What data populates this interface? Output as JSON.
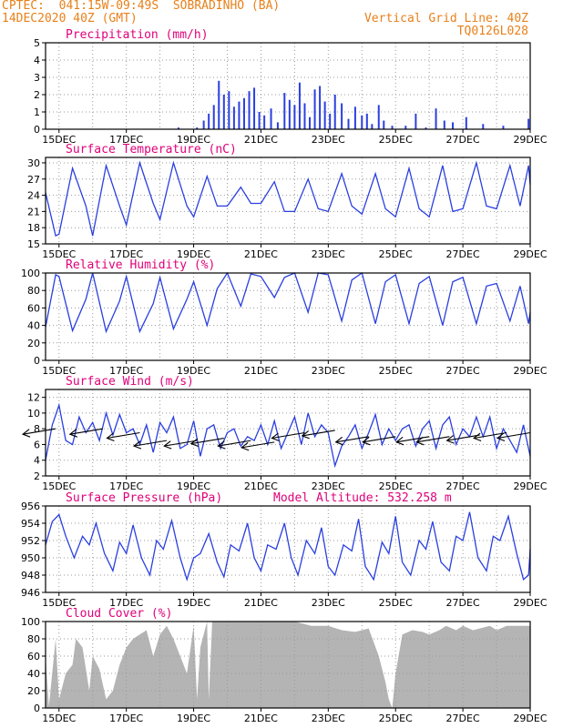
{
  "header": {
    "line1": "CPTEC:  041:15W-09:49S  SOBRADINHO (BA)",
    "line2": "14DEC2020 40Z (GMT)",
    "grid_note": "Vertical Grid Line: 40Z",
    "model_code": "TQ0126L028"
  },
  "colors": {
    "header": "#e8801a",
    "panel_title": "#e0007a",
    "series_line": "#2a3fe0",
    "precip_bar": "#2a3fe0",
    "cloud_fill": "#b4b4b4",
    "grid": "#9a9a9a"
  },
  "chart_data": [
    {
      "type": "bar",
      "title": "Precipitation (mm/h)",
      "x_ticks": [
        "15DEC",
        "17DEC",
        "19DEC",
        "21DEC",
        "23DEC",
        "25DEC",
        "27DEC",
        "29DEC"
      ],
      "y_ticks": [
        "0",
        "1",
        "2",
        "3",
        "4",
        "5"
      ],
      "ylim": [
        0,
        5
      ],
      "x_days": [
        14.6,
        29.0
      ],
      "grid": "dotted",
      "segments": [
        {
          "day": 18.55,
          "value": 0.1
        },
        {
          "day": 19.1,
          "value": 0.1
        },
        {
          "day": 19.3,
          "value": 0.5
        },
        {
          "day": 19.45,
          "value": 0.9
        },
        {
          "day": 19.6,
          "value": 1.4
        },
        {
          "day": 19.75,
          "value": 2.8
        },
        {
          "day": 19.9,
          "value": 2.0
        },
        {
          "day": 20.05,
          "value": 2.2
        },
        {
          "day": 20.2,
          "value": 1.3
        },
        {
          "day": 20.35,
          "value": 1.6
        },
        {
          "day": 20.5,
          "value": 1.8
        },
        {
          "day": 20.65,
          "value": 2.2
        },
        {
          "day": 20.8,
          "value": 2.4
        },
        {
          "day": 20.95,
          "value": 1.0
        },
        {
          "day": 21.1,
          "value": 0.8
        },
        {
          "day": 21.3,
          "value": 1.2
        },
        {
          "day": 21.5,
          "value": 0.4
        },
        {
          "day": 21.7,
          "value": 2.1
        },
        {
          "day": 21.85,
          "value": 1.7
        },
        {
          "day": 22.0,
          "value": 1.4
        },
        {
          "day": 22.15,
          "value": 2.7
        },
        {
          "day": 22.3,
          "value": 1.5
        },
        {
          "day": 22.45,
          "value": 0.7
        },
        {
          "day": 22.6,
          "value": 2.3
        },
        {
          "day": 22.75,
          "value": 2.5
        },
        {
          "day": 22.9,
          "value": 1.6
        },
        {
          "day": 23.05,
          "value": 0.9
        },
        {
          "day": 23.2,
          "value": 2.0
        },
        {
          "day": 23.4,
          "value": 1.5
        },
        {
          "day": 23.6,
          "value": 0.6
        },
        {
          "day": 23.8,
          "value": 1.3
        },
        {
          "day": 24.0,
          "value": 0.8
        },
        {
          "day": 24.15,
          "value": 0.9
        },
        {
          "day": 24.3,
          "value": 0.3
        },
        {
          "day": 24.5,
          "value": 1.4
        },
        {
          "day": 24.65,
          "value": 0.5
        },
        {
          "day": 24.9,
          "value": 0.2
        },
        {
          "day": 25.3,
          "value": 0.2
        },
        {
          "day": 25.6,
          "value": 0.9
        },
        {
          "day": 25.9,
          "value": 0.1
        },
        {
          "day": 26.2,
          "value": 1.2
        },
        {
          "day": 26.45,
          "value": 0.5
        },
        {
          "day": 26.7,
          "value": 0.4
        },
        {
          "day": 27.1,
          "value": 0.7
        },
        {
          "day": 27.6,
          "value": 0.3
        },
        {
          "day": 28.2,
          "value": 0.2
        },
        {
          "day": 28.95,
          "value": 0.6
        }
      ]
    },
    {
      "type": "line",
      "title": "Surface Temperature (nC)",
      "x_ticks": [
        "15DEC",
        "17DEC",
        "19DEC",
        "21DEC",
        "23DEC",
        "25DEC",
        "27DEC",
        "29DEC"
      ],
      "y_ticks": [
        "15",
        "18",
        "21",
        "24",
        "27",
        "30"
      ],
      "ylim": [
        15,
        31
      ],
      "x_days": [
        14.6,
        29.0
      ],
      "grid": "dotted",
      "series": [
        {
          "days": [
            14.6,
            14.9,
            15.0,
            15.4,
            15.8,
            16.0,
            16.4,
            16.8,
            17.0,
            17.4,
            17.8,
            18.0,
            18.4,
            18.8,
            19.0,
            19.4,
            19.7,
            20.0,
            20.4,
            20.7,
            21.0,
            21.4,
            21.7,
            22.0,
            22.4,
            22.7,
            23.0,
            23.4,
            23.7,
            24.0,
            24.4,
            24.7,
            25.0,
            25.4,
            25.7,
            26.0,
            26.4,
            26.7,
            27.0,
            27.4,
            27.7,
            28.0,
            28.4,
            28.7,
            28.95,
            29.0
          ],
          "values": [
            24.5,
            16.5,
            16.8,
            29.0,
            22.0,
            16.5,
            29.5,
            22.0,
            18.5,
            30.0,
            22.5,
            19.5,
            30.0,
            22.0,
            20.0,
            27.5,
            22.0,
            22.0,
            25.5,
            22.5,
            22.5,
            26.5,
            21.0,
            21.0,
            27.0,
            21.5,
            21.0,
            28.0,
            22.0,
            20.5,
            28.0,
            21.5,
            20.0,
            29.0,
            21.5,
            20.0,
            29.5,
            21.0,
            21.5,
            30.0,
            22.0,
            21.5,
            29.5,
            22.0,
            29.5,
            26.0
          ]
        }
      ]
    },
    {
      "type": "line",
      "title": "Relative Humidity (%)",
      "x_ticks": [
        "15DEC",
        "17DEC",
        "19DEC",
        "21DEC",
        "23DEC",
        "25DEC",
        "27DEC",
        "29DEC"
      ],
      "y_ticks": [
        "0",
        "20",
        "40",
        "60",
        "80",
        "100"
      ],
      "ylim": [
        0,
        100
      ],
      "x_days": [
        14.6,
        29.0
      ],
      "grid": "dotted",
      "series": [
        {
          "days": [
            14.6,
            14.9,
            15.0,
            15.4,
            15.8,
            16.0,
            16.4,
            16.8,
            17.0,
            17.4,
            17.8,
            18.0,
            18.4,
            18.8,
            19.0,
            19.4,
            19.7,
            20.0,
            20.4,
            20.7,
            21.0,
            21.4,
            21.7,
            22.0,
            22.4,
            22.7,
            23.0,
            23.4,
            23.7,
            24.0,
            24.4,
            24.7,
            25.0,
            25.4,
            25.7,
            26.0,
            26.4,
            26.7,
            27.0,
            27.4,
            27.7,
            28.0,
            28.4,
            28.7,
            28.95,
            29.0
          ],
          "values": [
            38,
            98,
            96,
            34,
            70,
            100,
            33,
            68,
            96,
            33,
            65,
            95,
            36,
            70,
            90,
            40,
            82,
            100,
            62,
            99,
            96,
            72,
            95,
            100,
            55,
            100,
            98,
            45,
            92,
            100,
            42,
            90,
            98,
            42,
            88,
            96,
            40,
            90,
            95,
            42,
            85,
            88,
            45,
            85,
            42,
            55
          ]
        }
      ]
    },
    {
      "type": "line",
      "title": "Surface Wind (m/s)",
      "x_ticks": [
        "15DEC",
        "17DEC",
        "19DEC",
        "21DEC",
        "23DEC",
        "25DEC",
        "27DEC",
        "29DEC"
      ],
      "y_ticks": [
        "2",
        "4",
        "6",
        "8",
        "10",
        "12"
      ],
      "ylim": [
        2,
        13
      ],
      "x_days": [
        14.6,
        29.0
      ],
      "grid": "dotted",
      "series": [
        {
          "days": [
            14.6,
            14.8,
            15.0,
            15.2,
            15.4,
            15.6,
            15.8,
            16.0,
            16.2,
            16.4,
            16.6,
            16.8,
            17.0,
            17.2,
            17.4,
            17.6,
            17.8,
            18.0,
            18.2,
            18.4,
            18.6,
            18.8,
            19.0,
            19.2,
            19.4,
            19.6,
            19.8,
            20.0,
            20.2,
            20.4,
            20.6,
            20.8,
            21.0,
            21.2,
            21.4,
            21.6,
            21.8,
            22.0,
            22.2,
            22.4,
            22.6,
            22.8,
            23.0,
            23.2,
            23.4,
            23.6,
            23.8,
            24.0,
            24.2,
            24.4,
            24.6,
            24.8,
            25.0,
            25.2,
            25.4,
            25.6,
            25.8,
            26.0,
            26.2,
            26.4,
            26.6,
            26.8,
            27.0,
            27.2,
            27.4,
            27.6,
            27.8,
            28.0,
            28.2,
            28.4,
            28.6,
            28.8,
            29.0
          ],
          "values": [
            4.0,
            8.5,
            11.0,
            6.5,
            6.0,
            9.5,
            7.5,
            8.8,
            6.5,
            10.0,
            7.2,
            9.8,
            7.5,
            8.0,
            6.0,
            8.5,
            5.0,
            8.8,
            7.5,
            9.5,
            5.5,
            6.0,
            9.0,
            4.5,
            8.0,
            8.5,
            5.5,
            7.5,
            8.0,
            5.8,
            7.0,
            6.5,
            8.5,
            6.0,
            9.0,
            5.5,
            7.5,
            9.5,
            6.0,
            10.0,
            7.0,
            8.5,
            7.5,
            3.3,
            5.8,
            7.0,
            8.5,
            5.5,
            7.5,
            9.8,
            6.0,
            8.0,
            6.5,
            8.0,
            8.5,
            5.8,
            8.0,
            9.0,
            5.5,
            8.5,
            9.5,
            6.0,
            8.0,
            7.0,
            9.5,
            7.0,
            9.5,
            5.5,
            8.0,
            6.5,
            5.0,
            8.5,
            4.5
          ]
        }
      ],
      "wind_arrows": [
        {
          "day": 14.9,
          "value": 8.0
        },
        {
          "day": 16.3,
          "value": 8.0
        },
        {
          "day": 17.4,
          "value": 7.5
        },
        {
          "day": 18.2,
          "value": 6.5
        },
        {
          "day": 19.1,
          "value": 6.5
        },
        {
          "day": 19.9,
          "value": 6.8
        },
        {
          "day": 20.7,
          "value": 6.5
        },
        {
          "day": 21.4,
          "value": 6.3
        },
        {
          "day": 22.3,
          "value": 7.5
        },
        {
          "day": 23.2,
          "value": 7.8
        },
        {
          "day": 24.2,
          "value": 7.0
        },
        {
          "day": 25.0,
          "value": 7.0
        },
        {
          "day": 26.0,
          "value": 7.0
        },
        {
          "day": 26.6,
          "value": 7.0
        },
        {
          "day": 27.5,
          "value": 7.2
        },
        {
          "day": 28.3,
          "value": 7.5
        },
        {
          "day": 29.0,
          "value": 7.5
        }
      ]
    },
    {
      "type": "line",
      "title": "Surface Pressure (hPa)",
      "annotation": "Model Altitude: 532.258 m",
      "x_ticks": [
        "15DEC",
        "17DEC",
        "19DEC",
        "21DEC",
        "23DEC",
        "25DEC",
        "27DEC",
        "29DEC"
      ],
      "y_ticks": [
        "946",
        "948",
        "950",
        "952",
        "954",
        "956"
      ],
      "ylim": [
        946,
        956
      ],
      "x_days": [
        14.6,
        29.0
      ],
      "grid": "dotted",
      "series": [
        {
          "days": [
            14.6,
            14.8,
            15.0,
            15.2,
            15.45,
            15.7,
            15.9,
            16.1,
            16.35,
            16.6,
            16.8,
            17.0,
            17.2,
            17.45,
            17.7,
            17.9,
            18.1,
            18.35,
            18.6,
            18.8,
            19.0,
            19.2,
            19.45,
            19.7,
            19.9,
            20.1,
            20.35,
            20.6,
            20.8,
            21.0,
            21.2,
            21.45,
            21.7,
            21.9,
            22.1,
            22.35,
            22.6,
            22.8,
            23.0,
            23.2,
            23.45,
            23.7,
            23.9,
            24.1,
            24.35,
            24.6,
            24.8,
            25.0,
            25.2,
            25.45,
            25.7,
            25.9,
            26.1,
            26.35,
            26.6,
            26.8,
            27.0,
            27.2,
            27.45,
            27.7,
            27.9,
            28.1,
            28.35,
            28.6,
            28.8,
            28.95,
            29.0
          ],
          "values": [
            951.5,
            954.2,
            955.0,
            952.5,
            950.0,
            952.5,
            951.5,
            954.0,
            950.5,
            948.5,
            951.8,
            950.5,
            953.8,
            950.0,
            948.0,
            952.0,
            951.0,
            954.3,
            950.0,
            947.5,
            950.0,
            950.5,
            952.8,
            949.5,
            947.8,
            951.5,
            950.8,
            954.0,
            950.0,
            948.5,
            951.5,
            951.0,
            954.0,
            950.0,
            948.0,
            952.0,
            950.5,
            953.5,
            949.0,
            948.0,
            951.5,
            950.8,
            954.5,
            949.0,
            947.5,
            951.8,
            950.5,
            954.8,
            949.5,
            948.0,
            952.0,
            951.0,
            954.2,
            949.5,
            948.5,
            952.5,
            952.0,
            955.3,
            950.0,
            948.5,
            952.5,
            952.0,
            954.8,
            950.5,
            947.5,
            948.0,
            951.0
          ]
        }
      ]
    },
    {
      "type": "area",
      "title": "Cloud Cover (%)",
      "x_ticks": [
        "15DEC",
        "17DEC",
        "19DEC",
        "21DEC",
        "23DEC",
        "25DEC",
        "27DEC",
        "29DEC"
      ],
      "y_ticks": [
        "0",
        "20",
        "40",
        "60",
        "80",
        "100"
      ],
      "ylim": [
        0,
        100
      ],
      "x_days": [
        14.6,
        29.0
      ],
      "grid": "dotted",
      "series": [
        {
          "days": [
            14.6,
            14.7,
            14.9,
            15.0,
            15.2,
            15.4,
            15.5,
            15.7,
            15.9,
            16.0,
            16.2,
            16.4,
            16.6,
            16.8,
            17.0,
            17.2,
            17.4,
            17.6,
            17.8,
            18.0,
            18.2,
            18.4,
            18.6,
            18.8,
            19.0,
            19.1,
            19.2,
            19.4,
            19.45,
            19.55,
            19.8,
            20.0,
            21.0,
            22.0,
            22.5,
            23.0,
            23.4,
            23.8,
            24.2,
            24.5,
            24.7,
            24.8,
            24.9,
            25.0,
            25.2,
            25.5,
            25.8,
            26.0,
            26.3,
            26.5,
            26.8,
            27.0,
            27.3,
            27.5,
            27.8,
            28.0,
            28.3,
            28.6,
            29.0
          ],
          "values": [
            60,
            2,
            80,
            10,
            40,
            50,
            80,
            70,
            20,
            60,
            45,
            10,
            20,
            50,
            70,
            80,
            85,
            90,
            60,
            85,
            95,
            80,
            60,
            40,
            95,
            10,
            70,
            100,
            10,
            100,
            100,
            100,
            100,
            100,
            95,
            95,
            90,
            88,
            92,
            60,
            30,
            10,
            0,
            40,
            85,
            90,
            88,
            85,
            90,
            95,
            90,
            95,
            90,
            92,
            95,
            90,
            95,
            95,
            95
          ]
        }
      ]
    }
  ]
}
